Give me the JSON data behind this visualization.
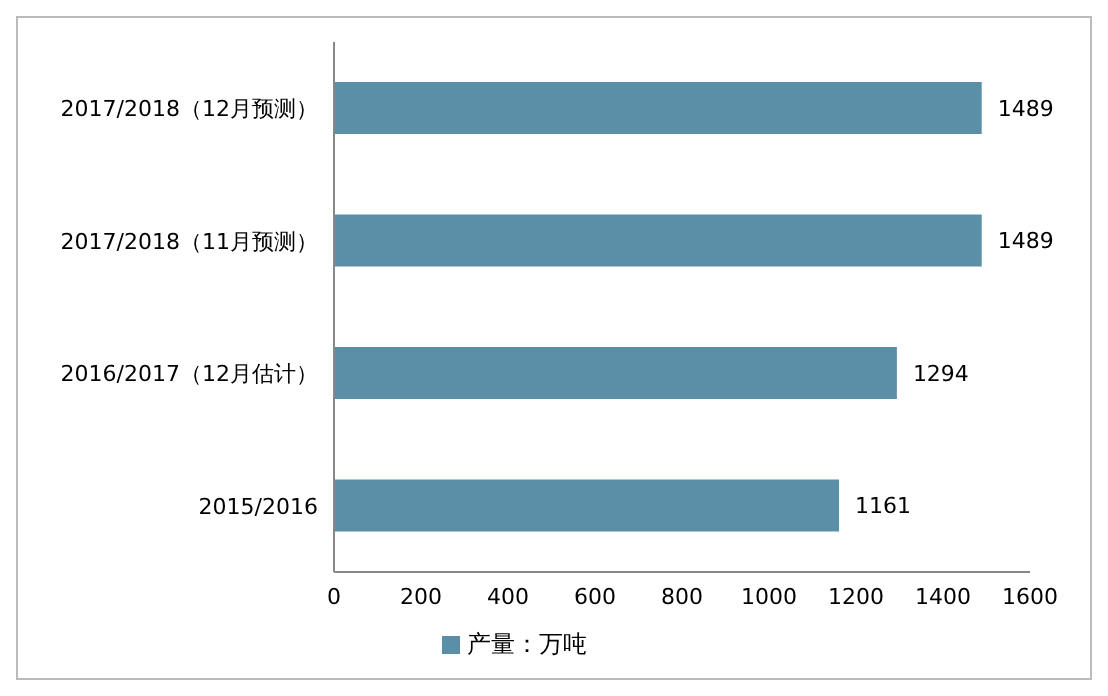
{
  "chart_data": {
    "type": "bar",
    "orientation": "horizontal",
    "categories": [
      "2017/2018（12月预测）",
      "2017/2018（11月预测）",
      "2016/2017（12月估计）",
      "2015/2016"
    ],
    "series": [
      {
        "name": "产量：万吨",
        "color": "#5b8fa8",
        "values": [
          1489,
          1489,
          1294,
          1161
        ]
      }
    ],
    "xlim": [
      0,
      1600
    ],
    "xticks": [
      0,
      200,
      400,
      600,
      800,
      1000,
      1200,
      1400,
      1600
    ],
    "data_labels": true,
    "legend": "bottom",
    "grid": false
  }
}
